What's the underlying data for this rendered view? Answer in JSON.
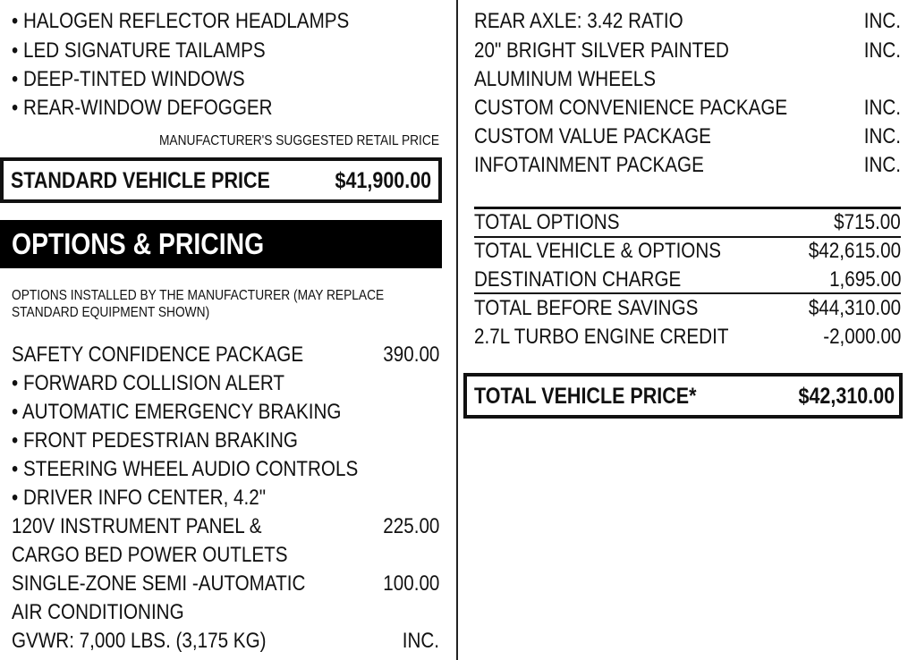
{
  "left": {
    "standard_features": [
      "• HALOGEN REFLECTOR HEADLAMPS",
      "• LED SIGNATURE TAILAMPS",
      "• DEEP-TINTED WINDOWS",
      "• REAR-WINDOW DEFOGGER"
    ],
    "msrp_label": "MANUFACTURER'S SUGGESTED RETAIL PRICE",
    "standard_price": {
      "label": "STANDARD VEHICLE PRICE",
      "value": "$41,900.00"
    },
    "section_title": "OPTIONS & PRICING",
    "options_note": [
      "OPTIONS INSTALLED BY THE MANUFACTURER (MAY REPLACE",
      "STANDARD EQUIPMENT SHOWN)"
    ],
    "options": [
      {
        "label": "SAFETY CONFIDENCE PACKAGE",
        "price": "390.00"
      },
      {
        "label": "• FORWARD COLLISION ALERT",
        "price": ""
      },
      {
        "label": "• AUTOMATIC EMERGENCY BRAKING",
        "price": ""
      },
      {
        "label": "• FRONT PEDESTRIAN BRAKING",
        "price": ""
      },
      {
        "label": "• STEERING WHEEL AUDIO CONTROLS",
        "price": ""
      },
      {
        "label": "• DRIVER INFO CENTER, 4.2\"",
        "price": ""
      },
      {
        "label": "120V INSTRUMENT PANEL &",
        "price": "225.00"
      },
      {
        "label": "CARGO BED POWER OUTLETS",
        "price": ""
      },
      {
        "label": "SINGLE-ZONE SEMI -AUTOMATIC",
        "price": "100.00"
      },
      {
        "label": "AIR CONDITIONING",
        "price": ""
      },
      {
        "label": "GVWR: 7,000 LBS. (3,175 KG)",
        "price": "INC."
      }
    ]
  },
  "right": {
    "options": [
      {
        "label": "REAR AXLE:  3.42 RATIO",
        "price": "INC."
      },
      {
        "label": "20\" BRIGHT SILVER PAINTED",
        "price": "INC."
      },
      {
        "label": "ALUMINUM WHEELS",
        "price": ""
      },
      {
        "label": "CUSTOM CONVENIENCE PACKAGE",
        "price": "INC."
      },
      {
        "label": "CUSTOM VALUE PACKAGE",
        "price": "INC."
      },
      {
        "label": "INFOTAINMENT PACKAGE",
        "price": "INC."
      }
    ],
    "totals": [
      {
        "label": "TOTAL OPTIONS",
        "value": "$715.00"
      },
      {
        "label": "TOTAL VEHICLE & OPTIONS",
        "value": "$42,615.00"
      },
      {
        "label": "DESTINATION CHARGE",
        "value": "1,695.00"
      },
      {
        "label": "TOTAL BEFORE SAVINGS",
        "value": "$44,310.00"
      },
      {
        "label": "2.7L TURBO ENGINE CREDIT",
        "value": "-2,000.00"
      }
    ],
    "total_price": {
      "label": "TOTAL VEHICLE PRICE*",
      "value": "$42,310.00"
    }
  }
}
